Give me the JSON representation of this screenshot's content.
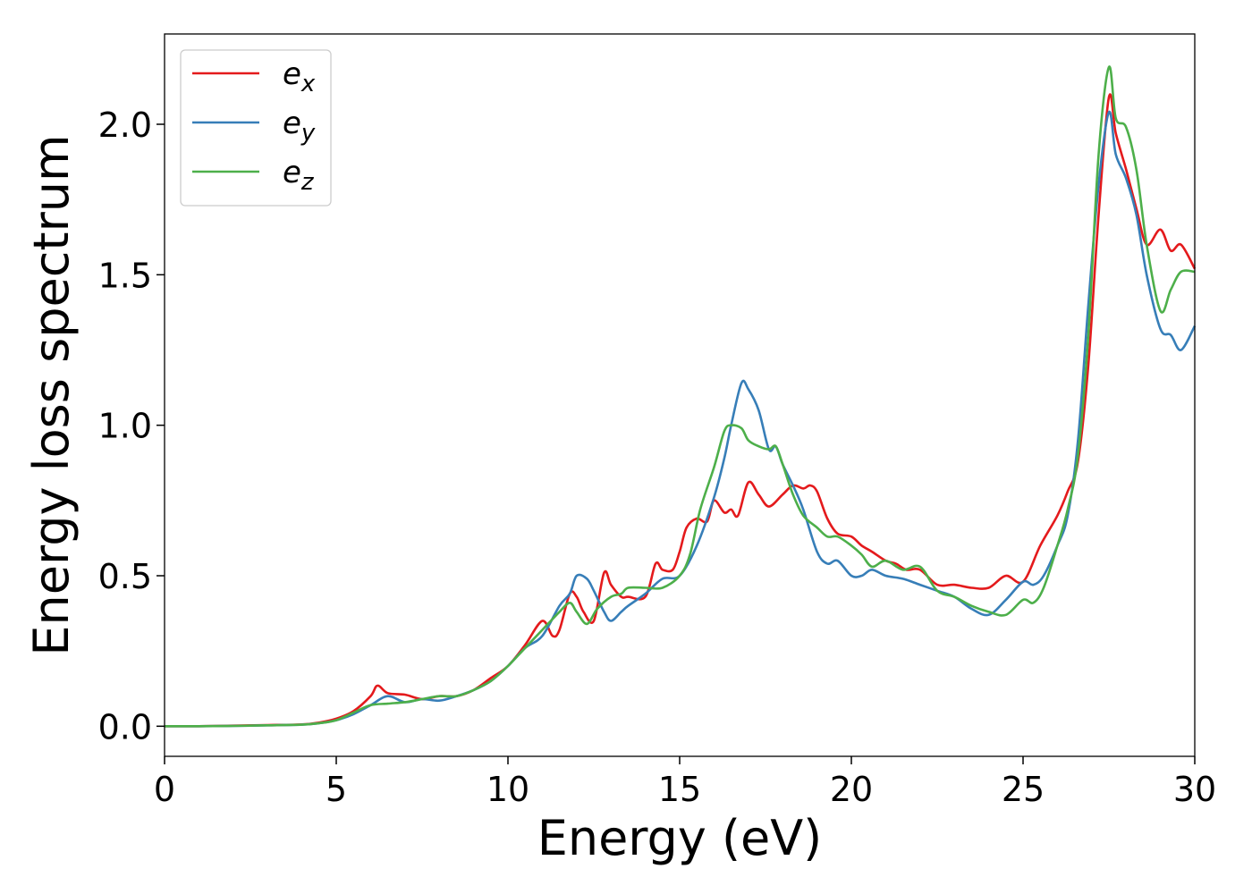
{
  "chart_data": {
    "type": "line",
    "title": "",
    "xlabel": "Energy (eV)",
    "ylabel": "Energy loss spectrum",
    "xlim": [
      0,
      30
    ],
    "ylim": [
      -0.1,
      2.3
    ],
    "xticks": [
      0,
      5,
      10,
      15,
      20,
      25,
      30
    ],
    "yticks": [
      0.0,
      0.5,
      1.0,
      1.5,
      2.0
    ],
    "xtick_labels": [
      "0",
      "5",
      "10",
      "15",
      "20",
      "25",
      "30"
    ],
    "ytick_labels": [
      "0.0",
      "0.5",
      "1.0",
      "1.5",
      "2.0"
    ],
    "grid": false,
    "legend_position": "top-left",
    "series": [
      {
        "name": "e",
        "subscript": "x",
        "color": "#e41a1c",
        "x": [
          0,
          1,
          2,
          3,
          4,
          4.5,
          5,
          5.5,
          6,
          6.2,
          6.5,
          7,
          7.5,
          8,
          8.5,
          9,
          9.5,
          10,
          10.5,
          11,
          11.3,
          11.5,
          11.8,
          12,
          12.2,
          12.5,
          12.8,
          13,
          13.3,
          13.5,
          14,
          14.3,
          14.5,
          14.8,
          15,
          15.2,
          15.5,
          15.8,
          16,
          16.3,
          16.5,
          16.7,
          17,
          17.3,
          17.6,
          18,
          18.3,
          18.6,
          18.8,
          19,
          19.3,
          19.6,
          20,
          20.3,
          20.6,
          21,
          21.3,
          21.6,
          22,
          22.5,
          23,
          23.5,
          24,
          24.5,
          25,
          25.5,
          26,
          26.3,
          26.6,
          26.9,
          27.2,
          27.5,
          27.7,
          28,
          28.3,
          28.6,
          29,
          29.3,
          29.6,
          30
        ],
        "y": [
          0.0,
          0.0,
          0.002,
          0.004,
          0.006,
          0.012,
          0.025,
          0.05,
          0.1,
          0.135,
          0.11,
          0.105,
          0.09,
          0.1,
          0.1,
          0.12,
          0.16,
          0.2,
          0.27,
          0.35,
          0.3,
          0.32,
          0.44,
          0.43,
          0.38,
          0.35,
          0.51,
          0.47,
          0.43,
          0.43,
          0.43,
          0.54,
          0.52,
          0.52,
          0.58,
          0.66,
          0.69,
          0.68,
          0.75,
          0.71,
          0.72,
          0.7,
          0.81,
          0.77,
          0.73,
          0.77,
          0.8,
          0.79,
          0.8,
          0.78,
          0.69,
          0.64,
          0.63,
          0.6,
          0.58,
          0.55,
          0.54,
          0.52,
          0.52,
          0.47,
          0.47,
          0.46,
          0.46,
          0.5,
          0.48,
          0.6,
          0.7,
          0.78,
          0.88,
          1.2,
          1.7,
          2.09,
          1.97,
          1.85,
          1.72,
          1.6,
          1.65,
          1.58,
          1.6,
          1.52
        ]
      },
      {
        "name": "e",
        "subscript": "y",
        "color": "#377eb8",
        "x": [
          0,
          1,
          2,
          3,
          4,
          4.5,
          5,
          5.5,
          6,
          6.5,
          7,
          7.5,
          8,
          8.5,
          9,
          9.5,
          10,
          10.5,
          11,
          11.5,
          11.8,
          12,
          12.3,
          12.5,
          12.8,
          13,
          13.3,
          13.5,
          14,
          14.5,
          15,
          15.5,
          16,
          16.3,
          16.5,
          16.8,
          17,
          17.3,
          17.6,
          17.8,
          18,
          18.3,
          18.6,
          19,
          19.3,
          19.6,
          20,
          20.3,
          20.6,
          21,
          21.5,
          22,
          22.5,
          23,
          23.5,
          24,
          24.5,
          25,
          25.3,
          25.6,
          26,
          26.3,
          26.6,
          26.9,
          27.2,
          27.5,
          27.7,
          28,
          28.3,
          28.6,
          29,
          29.3,
          29.6,
          30
        ],
        "y": [
          0.0,
          0.0,
          0.001,
          0.003,
          0.005,
          0.01,
          0.02,
          0.04,
          0.07,
          0.1,
          0.08,
          0.09,
          0.085,
          0.1,
          0.12,
          0.15,
          0.2,
          0.26,
          0.3,
          0.4,
          0.44,
          0.5,
          0.49,
          0.45,
          0.38,
          0.35,
          0.38,
          0.4,
          0.44,
          0.49,
          0.5,
          0.6,
          0.76,
          0.89,
          1.0,
          1.14,
          1.12,
          1.05,
          0.92,
          0.93,
          0.87,
          0.8,
          0.72,
          0.58,
          0.54,
          0.55,
          0.5,
          0.5,
          0.52,
          0.5,
          0.49,
          0.47,
          0.45,
          0.43,
          0.39,
          0.37,
          0.42,
          0.48,
          0.47,
          0.5,
          0.6,
          0.7,
          0.95,
          1.4,
          1.8,
          2.04,
          1.9,
          1.82,
          1.7,
          1.5,
          1.32,
          1.3,
          1.25,
          1.33
        ]
      },
      {
        "name": "e",
        "subscript": "z",
        "color": "#4daf4a",
        "x": [
          0,
          1,
          2,
          3,
          4,
          4.5,
          5,
          5.5,
          6,
          6.5,
          7,
          7.5,
          8,
          8.5,
          9,
          9.5,
          10,
          10.5,
          11,
          11.5,
          11.8,
          12,
          12.3,
          12.6,
          13,
          13.3,
          13.5,
          14,
          14.5,
          15,
          15.3,
          15.6,
          16,
          16.3,
          16.5,
          16.8,
          17,
          17.3,
          17.6,
          17.8,
          18,
          18.3,
          18.6,
          19,
          19.3,
          19.6,
          20,
          20.3,
          20.6,
          21,
          21.5,
          22,
          22.5,
          23,
          23.5,
          24,
          24.5,
          25,
          25.3,
          25.6,
          26,
          26.3,
          26.6,
          26.9,
          27.2,
          27.5,
          27.7,
          28,
          28.3,
          28.6,
          29,
          29.3,
          29.6,
          30
        ],
        "y": [
          0.0,
          0.0,
          0.001,
          0.003,
          0.005,
          0.01,
          0.02,
          0.045,
          0.07,
          0.075,
          0.08,
          0.09,
          0.1,
          0.1,
          0.12,
          0.15,
          0.2,
          0.26,
          0.32,
          0.38,
          0.41,
          0.38,
          0.34,
          0.39,
          0.43,
          0.44,
          0.46,
          0.46,
          0.46,
          0.5,
          0.57,
          0.72,
          0.86,
          0.98,
          1.0,
          0.99,
          0.95,
          0.93,
          0.92,
          0.93,
          0.87,
          0.77,
          0.7,
          0.66,
          0.63,
          0.63,
          0.6,
          0.57,
          0.53,
          0.55,
          0.52,
          0.53,
          0.45,
          0.43,
          0.4,
          0.38,
          0.37,
          0.42,
          0.41,
          0.46,
          0.6,
          0.72,
          0.9,
          1.3,
          1.9,
          2.19,
          2.02,
          1.99,
          1.85,
          1.6,
          1.38,
          1.45,
          1.51,
          1.51
        ]
      }
    ]
  }
}
